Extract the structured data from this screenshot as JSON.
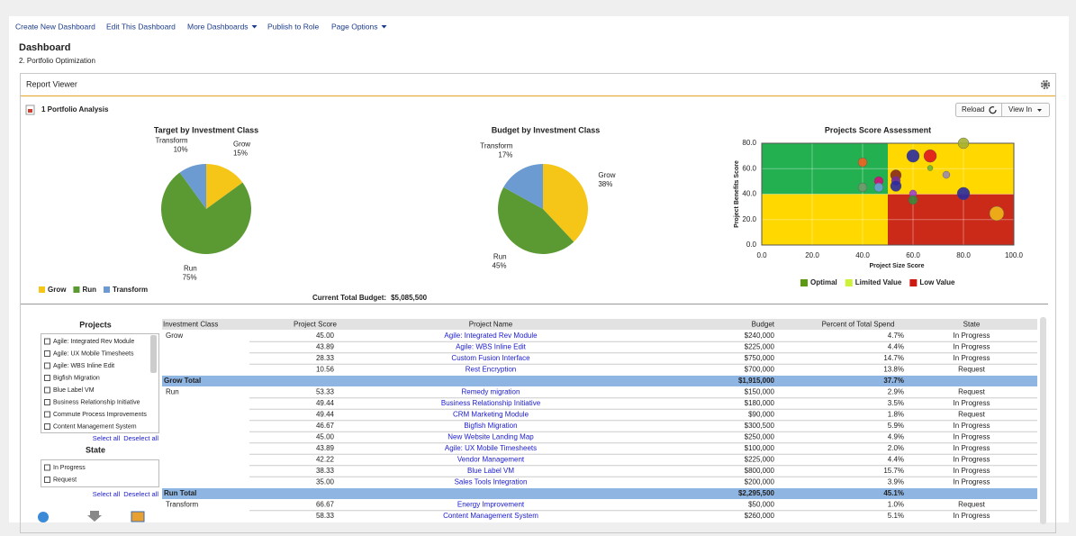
{
  "nav": [
    "Create New Dashboard",
    "Edit This Dashboard",
    "More Dashboards",
    "Publish to Role",
    "Page Options"
  ],
  "header": {
    "title": "Dashboard",
    "subtitle": "2. Portfolio Optimization"
  },
  "panel": {
    "title": "Report Viewer",
    "report": "1 Portfolio Analysis",
    "buttons": [
      "Reload",
      "View In"
    ]
  },
  "chart_data": [
    {
      "type": "pie",
      "title": "Target by Investment Class",
      "categories": [
        "Grow",
        "Run",
        "Transform"
      ],
      "values": [
        15,
        75,
        10
      ],
      "value_labels": [
        "15%",
        "75%",
        "10%"
      ],
      "colors": [
        "#f5c518",
        "#5b9a33",
        "#6b9bd1"
      ],
      "legend": "bottom-left"
    },
    {
      "type": "pie",
      "title": "Budget by Investment Class",
      "categories": [
        "Grow",
        "Run",
        "Transform"
      ],
      "values": [
        38,
        45,
        17
      ],
      "value_labels": [
        "38%",
        "45%",
        "17%"
      ],
      "colors": [
        "#f5c518",
        "#5b9a33",
        "#6b9bd1"
      ]
    },
    {
      "type": "scatter",
      "title": "Projects Score Assessment",
      "x_label": "Project Size Score",
      "y_label": "Project Benefits Score",
      "xlim": [
        0,
        100
      ],
      "ylim": [
        0,
        80
      ],
      "xticks": [
        {
          "value": 0,
          "label": "0.0"
        },
        {
          "value": 20,
          "label": "20.0"
        },
        {
          "value": 40,
          "label": "40.0"
        },
        {
          "value": 60,
          "label": "60.0"
        },
        {
          "value": 80,
          "label": "80.0"
        },
        {
          "value": 100,
          "label": "100.0"
        }
      ],
      "yticks": [
        {
          "value": 0,
          "label": "0.0"
        },
        {
          "value": 20,
          "label": "20.0"
        },
        {
          "value": 40,
          "label": "40.0"
        },
        {
          "value": 60,
          "label": "60.0"
        },
        {
          "value": 80,
          "label": "80.0"
        }
      ],
      "grid": true,
      "thresholds": {
        "x": 50,
        "y": 40
      },
      "zones": [
        {
          "name": "Optimal",
          "color": "#5c9a12"
        },
        {
          "name": "Limited Value",
          "color": "#ccf23a"
        },
        {
          "name": "Low Value",
          "color": "#cc1a10"
        }
      ],
      "x": [
        80,
        40,
        60,
        66.8,
        66.8,
        53.2,
        53.2,
        53.2,
        46.4,
        46.4,
        40,
        73.2,
        60,
        60,
        80,
        93.2
      ],
      "values": [
        80,
        65,
        70,
        70,
        60.5,
        54.9,
        50.5,
        46.4,
        50.3,
        45.3,
        45.3,
        55.2,
        40.4,
        35.4,
        40.4,
        24.8
      ],
      "sizes": [
        6,
        5,
        7,
        7,
        3,
        6,
        5,
        6,
        5,
        5,
        5,
        4,
        4,
        5,
        7,
        8
      ],
      "colors": [
        "#a6b032",
        "#f06020",
        "#2a2aa0",
        "#e0141e",
        "#6aba2a",
        "#8a2a1a",
        "#7a2a9a",
        "#2a2aa0",
        "#d0107a",
        "#6aa0d8",
        "#6f9a6a",
        "#9a8ab0",
        "#a040d0",
        "#3a8a3a",
        "#2a2aa0",
        "#f0b818"
      ]
    }
  ],
  "budget": {
    "label": "Current Total Budget:",
    "value": "$5,085,500"
  },
  "filters": [
    {
      "title": "Projects",
      "items": [
        "Agile: Integrated Rev Module",
        "Agile: UX Mobile Timesheets",
        "Agile: WBS Inline Edit",
        "Bigfish Migration",
        "Blue Label VM",
        "Business Relationship Initiative",
        "Commute Process Improvements",
        "Content Management System"
      ],
      "actions": [
        "Select all",
        "Deselect all"
      ]
    },
    {
      "title": "State",
      "items": [
        "In Progress",
        "Request"
      ],
      "actions": [
        "Select all",
        "Deselect all"
      ]
    }
  ],
  "table": {
    "columns": [
      "Investment Class",
      "Project Score",
      "Project Name",
      "Budget",
      "Percent of Total Spend",
      "State"
    ],
    "groups": [
      {
        "name": "Grow",
        "rows": [
          [
            "45.00",
            "Agile: Integrated Rev Module",
            "$240,000",
            "4.7%",
            "In Progress"
          ],
          [
            "43.89",
            "Agile: WBS Inline Edit",
            "$225,000",
            "4.4%",
            "In Progress"
          ],
          [
            "28.33",
            "Custom Fusion Interface",
            "$750,000",
            "14.7%",
            "In Progress"
          ],
          [
            "10.56",
            "Rest Encryption",
            "$700,000",
            "13.8%",
            "Request"
          ]
        ],
        "total": {
          "label": "Grow Total",
          "budget": "$1,915,000",
          "percent": "37.7%"
        }
      },
      {
        "name": "Run",
        "rows": [
          [
            "53.33",
            "Remedy migration",
            "$150,000",
            "2.9%",
            "Request"
          ],
          [
            "49.44",
            "Business Relationship Initiative",
            "$180,000",
            "3.5%",
            "In Progress"
          ],
          [
            "49.44",
            "CRM Marketing Module",
            "$90,000",
            "1.8%",
            "Request"
          ],
          [
            "46.67",
            "Bigfish Migration",
            "$300,500",
            "5.9%",
            "In Progress"
          ],
          [
            "45.00",
            "New Website Landing Map",
            "$250,000",
            "4.9%",
            "In Progress"
          ],
          [
            "43.89",
            "Agile: UX Mobile Timesheets",
            "$100,000",
            "2.0%",
            "In Progress"
          ],
          [
            "42.22",
            "Vendor Management",
            "$225,000",
            "4.4%",
            "In Progress"
          ],
          [
            "38.33",
            "Blue Label VM",
            "$800,000",
            "15.7%",
            "In Progress"
          ],
          [
            "35.00",
            "Sales Tools Integration",
            "$200,000",
            "3.9%",
            "In Progress"
          ]
        ],
        "total": {
          "label": "Run Total",
          "budget": "$2,295,500",
          "percent": "45.1%"
        }
      },
      {
        "name": "Transform",
        "rows": [
          [
            "66.67",
            "Energy Improvement",
            "$50,000",
            "1.0%",
            "Request"
          ],
          [
            "58.33",
            "Content Management System",
            "$260,000",
            "5.1%",
            "In Progress"
          ]
        ]
      }
    ]
  }
}
